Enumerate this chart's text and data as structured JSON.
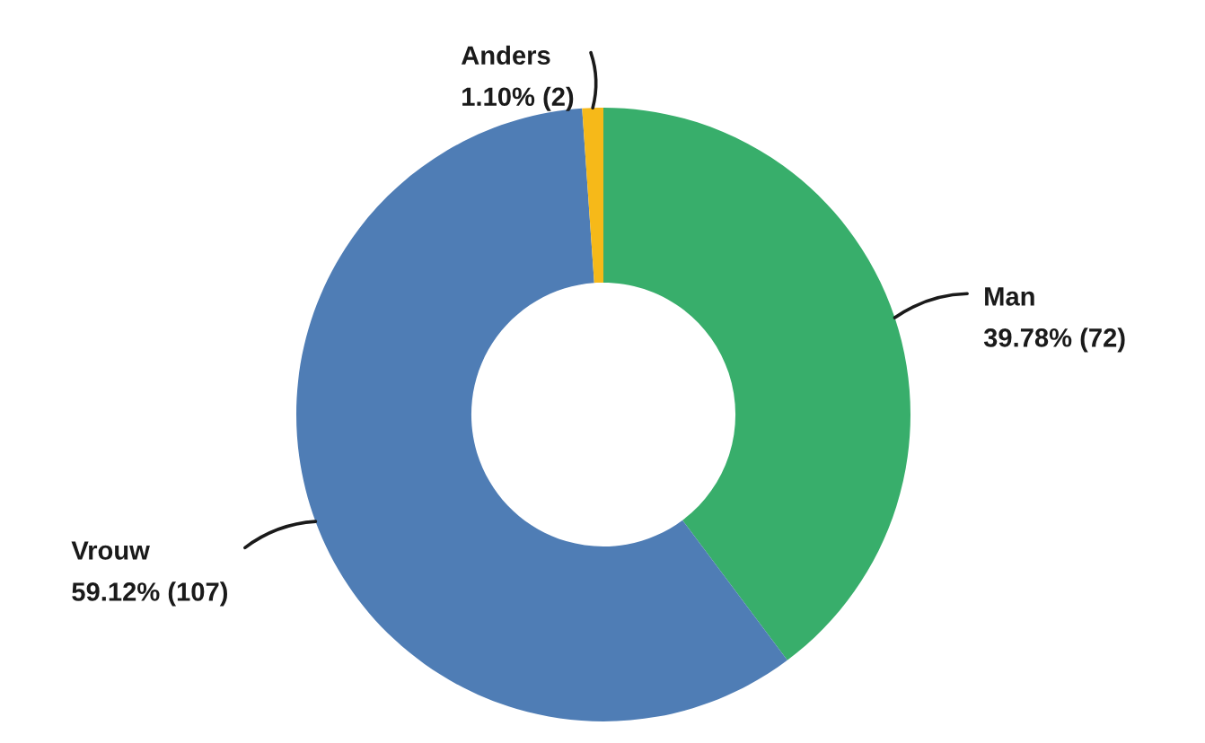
{
  "chart_data": {
    "type": "donut",
    "categories": [
      "Man",
      "Vrouw",
      "Anders"
    ],
    "values": [
      72,
      107,
      2
    ],
    "colors": [
      "#38ae6b",
      "#4f7db5",
      "#f6b919"
    ],
    "value_labels": [
      "39.78% (72)",
      "59.12% (107)",
      "1.10% (2)"
    ]
  }
}
